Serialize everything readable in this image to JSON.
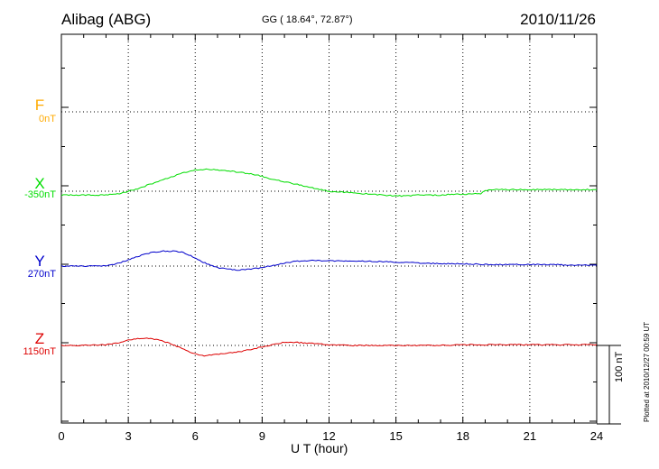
{
  "header": {
    "station": "Alibag (ABG)",
    "coords": "GG ( 18.64°,  72.87°)",
    "date": "2010/11/26"
  },
  "footer": {
    "xlabel": "U T (hour)",
    "plotted": "Plotted at 2010/12/27 00:59 UT",
    "scale_label": "100 nT"
  },
  "colors": {
    "F": "#ffaa00",
    "X": "#00dd00",
    "Y": "#0000cc",
    "Z": "#dd0000",
    "grid": "#000000"
  },
  "chart_data": {
    "type": "line",
    "xlim": [
      0,
      24
    ],
    "xticks": [
      "0",
      "3",
      "6",
      "9",
      "12",
      "15",
      "18",
      "21",
      "24"
    ],
    "scale_nT": 100,
    "series": [
      {
        "key": "F",
        "name": "F",
        "offset": "0nT",
        "x": [],
        "y": []
      },
      {
        "key": "X",
        "name": "X",
        "offset": "-350nT",
        "x": [
          0,
          1,
          2,
          2.6,
          3,
          3.5,
          4,
          4.5,
          5,
          5.5,
          6,
          6.5,
          7,
          7.5,
          8,
          8.5,
          9,
          9.5,
          10,
          10.5,
          11,
          11.5,
          12,
          12.5,
          13,
          13.5,
          14,
          14.5,
          15,
          15.5,
          16,
          16.5,
          17,
          17.5,
          18,
          18.8,
          19,
          19.5,
          20,
          21,
          22,
          23,
          24
        ],
        "y": [
          -5,
          -5,
          -5,
          -3,
          0,
          4,
          9,
          14,
          19,
          24,
          27,
          28,
          27,
          26,
          24,
          22,
          19,
          15,
          12,
          9,
          6,
          3,
          0,
          -1,
          -2,
          -3,
          -4,
          -5,
          -6,
          -6,
          -5,
          -5,
          -5,
          -4,
          -4,
          -3,
          1,
          2,
          2,
          2,
          2,
          2,
          2
        ]
      },
      {
        "key": "Y",
        "name": "Y",
        "offset": "270nT",
        "x": [
          0,
          1,
          1.8,
          2.2,
          2.6,
          3,
          3.5,
          4,
          4.5,
          5,
          5.4,
          5.8,
          6.2,
          6.6,
          7,
          7.5,
          8,
          8.5,
          9,
          9.5,
          10,
          10.5,
          11,
          12,
          13,
          14,
          15,
          16,
          17,
          18,
          19,
          20,
          21,
          22,
          23,
          24
        ],
        "y": [
          0,
          0,
          0,
          1,
          4,
          8,
          13,
          17,
          19,
          19,
          18,
          13,
          7,
          2,
          -2,
          -4,
          -5,
          -4,
          -2,
          1,
          4,
          6,
          7,
          7,
          6,
          6,
          5,
          4,
          3,
          3,
          2,
          2,
          2,
          2,
          1,
          1
        ]
      },
      {
        "key": "Z",
        "name": "Z",
        "offset": "1150nT",
        "x": [
          0,
          1,
          2,
          2.6,
          3,
          3.5,
          4,
          4.5,
          5,
          5.5,
          6,
          6.4,
          6.8,
          7.5,
          8,
          8.5,
          9,
          9.5,
          10,
          10.5,
          11,
          11.5,
          12,
          13,
          14,
          15,
          16,
          17,
          18,
          19,
          20,
          21,
          22,
          23,
          24
        ],
        "y": [
          0,
          0,
          1,
          3,
          7,
          9,
          9,
          6,
          1,
          -5,
          -11,
          -13,
          -12,
          -10,
          -8,
          -5,
          -2,
          1,
          4,
          4,
          3,
          2,
          1,
          0,
          0,
          0,
          0,
          0,
          1,
          1,
          1,
          1,
          1,
          1,
          1
        ]
      }
    ]
  }
}
